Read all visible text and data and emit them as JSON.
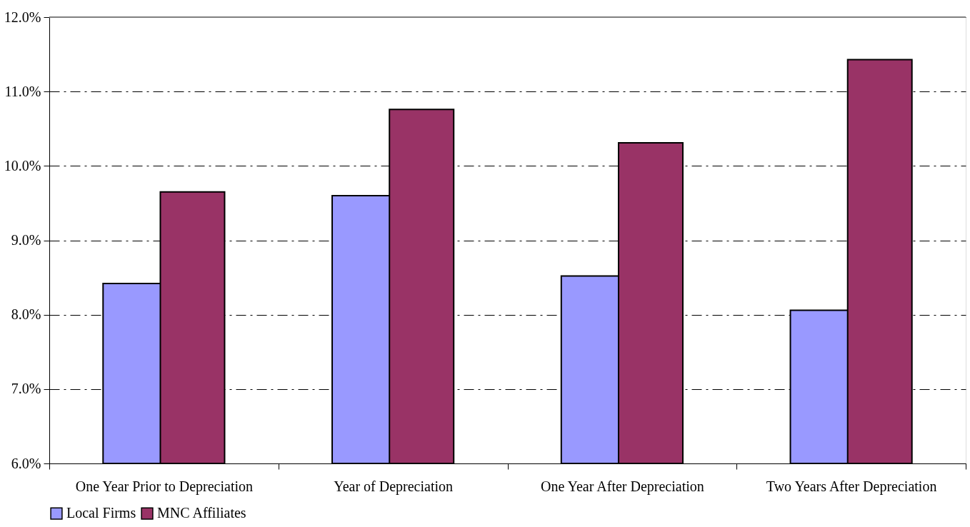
{
  "chart_data": {
    "type": "bar",
    "categories": [
      "One Year Prior to Depreciation",
      "Year of Depreciation",
      "One Year After Depreciation",
      "Two Years After Depreciation"
    ],
    "series": [
      {
        "name": "Local Firms",
        "color": "#9999ff",
        "values": [
          8.42,
          9.6,
          8.52,
          8.06
        ]
      },
      {
        "name": "MNC Affiliates",
        "color": "#993366",
        "values": [
          9.65,
          10.76,
          10.31,
          11.43
        ]
      }
    ],
    "ylim": [
      6,
      12
    ],
    "yticks": [
      {
        "value": 6,
        "label": "6.0%"
      },
      {
        "value": 7,
        "label": "7.0%"
      },
      {
        "value": 8,
        "label": "8.0%"
      },
      {
        "value": 9,
        "label": "9.0%"
      },
      {
        "value": 10,
        "label": "10.0%"
      },
      {
        "value": 11,
        "label": "11.0%"
      },
      {
        "value": 12,
        "label": "12.0%"
      }
    ],
    "grid": "y",
    "legend": "bottom"
  }
}
